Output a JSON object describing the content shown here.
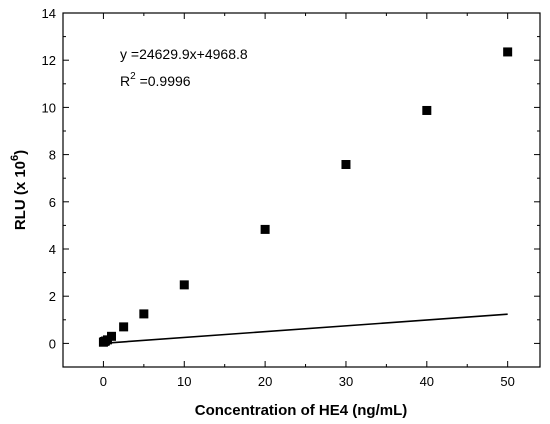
{
  "chart_data": {
    "type": "scatter",
    "xlabel": "Concentration of HE4 (ng/mL)",
    "ylabel_main": "RLU (x 10",
    "ylabel_exp": "6",
    "ylabel_close": ")",
    "xlim": [
      -5,
      54
    ],
    "ylim": [
      -1,
      14
    ],
    "x_ticks": [
      0,
      10,
      20,
      30,
      40,
      50
    ],
    "x_tick_labels": [
      "0",
      "10",
      "20",
      "30",
      "40",
      "50"
    ],
    "y_ticks": [
      0,
      2,
      4,
      6,
      8,
      10,
      12,
      14
    ],
    "y_tick_labels": [
      "0",
      "2",
      "4",
      "6",
      "8",
      "10",
      "12",
      "14"
    ],
    "points": [
      {
        "x": 0,
        "y": 0.05
      },
      {
        "x": 0.1,
        "y": 0.08
      },
      {
        "x": 0.25,
        "y": 0.1
      },
      {
        "x": 0.5,
        "y": 0.15
      },
      {
        "x": 1,
        "y": 0.3
      },
      {
        "x": 2.5,
        "y": 0.7
      },
      {
        "x": 5,
        "y": 1.25
      },
      {
        "x": 10,
        "y": 2.48
      },
      {
        "x": 20,
        "y": 4.83
      },
      {
        "x": 30,
        "y": 7.58
      },
      {
        "x": 40,
        "y": 9.87
      },
      {
        "x": 50,
        "y": 12.35
      }
    ],
    "fit_line": {
      "slope": 0.0246299,
      "intercept": 0.0049688,
      "x_start": 0,
      "x_end": 50
    },
    "annotation": {
      "equation": "y =24629.9x+4968.8",
      "r2_prefix": "R",
      "r2_exp": "2",
      "r2_value": " =0.9996"
    },
    "grid": false,
    "marker": "square",
    "color": "#000000"
  }
}
